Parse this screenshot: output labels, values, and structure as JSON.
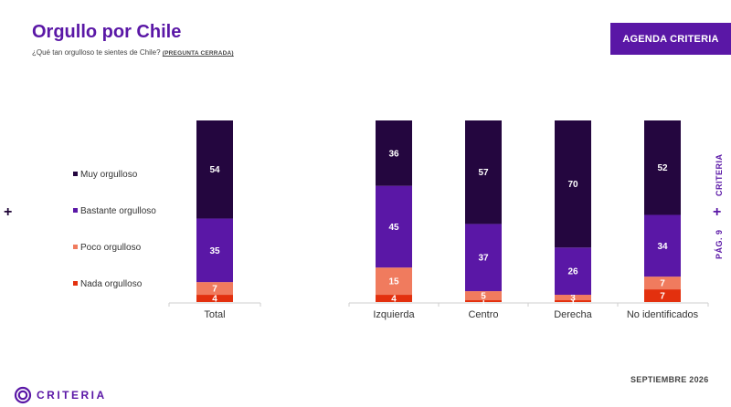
{
  "title": "Orgullo por Chile",
  "subtitle": "¿Qué tan orgulloso te sientes de Chile?",
  "subtitle_tag": "(PREGUNTA CERRADA)",
  "badge": "AGENDA CRITERIA",
  "side_brand": "CRITERIA",
  "page_label": "PÁG. 9",
  "date": "SEPTIEMBRE 2026",
  "logo_text": "CRITERIA",
  "colors": {
    "accent": "#5a17a6",
    "muy": "#24063f",
    "bastante": "#5a17a6",
    "poco": "#f07b5e",
    "nada": "#e3300e"
  },
  "chart_data": {
    "type": "bar",
    "stacked": true,
    "categories": [
      "Total",
      "Izquierda",
      "Centro",
      "Derecha",
      "No identificados"
    ],
    "ylim": [
      0,
      100
    ],
    "series": [
      {
        "name": "Nada orgulloso",
        "values": [
          4,
          4,
          1,
          1,
          7
        ]
      },
      {
        "name": "Poco orgulloso",
        "values": [
          7,
          15,
          5,
          3,
          7
        ]
      },
      {
        "name": "Bastante orgulloso",
        "values": [
          35,
          45,
          37,
          26,
          34
        ]
      },
      {
        "name": "Muy orgulloso",
        "values": [
          54,
          36,
          57,
          70,
          52
        ]
      }
    ],
    "data_labels": [
      [
        "4",
        "4",
        "1",
        "1",
        "7"
      ],
      [
        "7",
        "15",
        "5",
        "3",
        "7"
      ],
      [
        "35",
        "45",
        "37",
        "26",
        "34"
      ],
      [
        "54",
        "36",
        "57",
        "70",
        "52"
      ]
    ],
    "legend": [
      "Muy orgulloso",
      "Bastante orgulloso",
      "Poco orgulloso",
      "Nada orgulloso"
    ],
    "legend_position": "left",
    "grid": false
  }
}
